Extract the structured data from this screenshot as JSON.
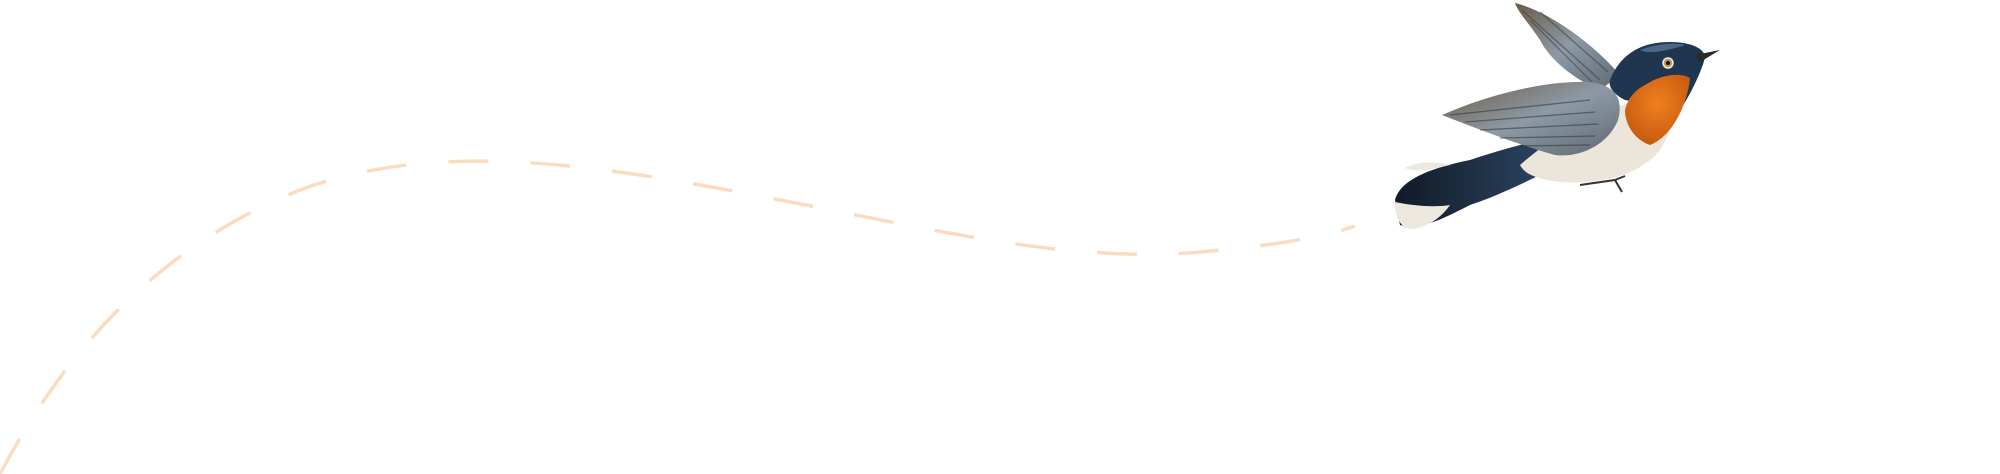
{
  "illustration": {
    "subject": "bird-icon",
    "path_style": "dashed",
    "colors": {
      "background": "#ffffff",
      "flight_path": "#fcdcbf",
      "bird_head": "#1f3550",
      "bird_throat": "#e8741a",
      "bird_belly": "#ece6da",
      "bird_wing": "#7d8288",
      "bird_tail": "#1a2a3e"
    }
  }
}
